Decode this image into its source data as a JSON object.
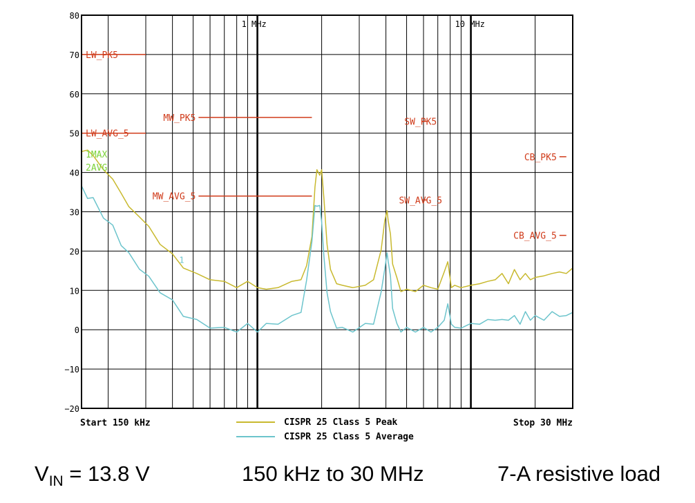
{
  "chart_data": {
    "type": "line",
    "title": "",
    "x_scale": "log",
    "xlim_mhz": [
      0.15,
      30
    ],
    "ylim": [
      -20,
      80
    ],
    "y_ticks": [
      80,
      70,
      60,
      50,
      40,
      30,
      20,
      10,
      0,
      -10,
      -20
    ],
    "y_tick_labels": [
      "80",
      "70",
      "60",
      "50",
      "40",
      "30",
      "20",
      "10",
      "0",
      "−10",
      "−20"
    ],
    "x_decade_labels": [
      {
        "mhz": 1,
        "label": "1 MHz"
      },
      {
        "mhz": 10,
        "label": "10 MHz"
      }
    ],
    "grid": true,
    "start_label": "Start 150 kHz",
    "stop_label": "Stop 30 MHz",
    "trace_labels": [
      "1MAX",
      "2AVG"
    ],
    "marker_label": "1",
    "legend": [
      {
        "name": "CISPR 25 Class 5 Peak",
        "color": "#c8b92e"
      },
      {
        "name": "CISPR 25 Class 5 Average",
        "color": "#6cc4cc"
      }
    ],
    "limits": [
      {
        "name": "LW_PK5",
        "level": 70,
        "f_start": 0.15,
        "f_stop": 0.3
      },
      {
        "name": "LW_AVG_5",
        "level": 50,
        "f_start": 0.15,
        "f_stop": 0.3
      },
      {
        "name": "MW_PK5",
        "level": 54,
        "f_start": 0.53,
        "f_stop": 1.8
      },
      {
        "name": "MW_AVG_5",
        "level": 34,
        "f_start": 0.53,
        "f_stop": 1.8
      },
      {
        "name": "SW_PK5",
        "level": 53,
        "f_start": 5.9,
        "f_stop": 6.2
      },
      {
        "name": "SW_AVG_5",
        "level": 33,
        "f_start": 5.9,
        "f_stop": 6.2
      },
      {
        "name": "CB_PK5",
        "level": 44,
        "f_start": 26,
        "f_stop": 28
      },
      {
        "name": "CB_AVG_5",
        "level": 24,
        "f_start": 26,
        "f_stop": 28
      }
    ],
    "series": [
      {
        "name": "CISPR 25 Class 5 Peak",
        "color": "#c8b92e",
        "x": [
          0.15,
          0.16,
          0.17,
          0.19,
          0.21,
          0.23,
          0.25,
          0.28,
          0.31,
          0.35,
          0.4,
          0.45,
          0.52,
          0.6,
          0.7,
          0.8,
          0.9,
          1.0,
          1.1,
          1.25,
          1.45,
          1.6,
          1.7,
          1.8,
          1.86,
          1.9,
          1.96,
          2.0,
          2.05,
          2.12,
          2.2,
          2.35,
          2.5,
          2.8,
          3.2,
          3.5,
          3.8,
          3.95,
          4.05,
          4.1,
          4.2,
          4.3,
          4.5,
          4.7,
          5.0,
          5.5,
          6.0,
          6.5,
          7.0,
          7.5,
          7.8,
          8.1,
          8.4,
          9.0,
          10.0,
          11.0,
          12.0,
          13.0,
          14.0,
          15.0,
          16.0,
          17.0,
          18.0,
          19.0,
          20.0,
          22.0,
          24.0,
          26.0,
          28.0,
          30.0
        ],
        "values": [
          45,
          46,
          44,
          41,
          38,
          35,
          31,
          29,
          26,
          22,
          19,
          16,
          14,
          13,
          12,
          11,
          12,
          11,
          10,
          11,
          12,
          13,
          16,
          24,
          36,
          41,
          39,
          41,
          33,
          22,
          15,
          12,
          11,
          11,
          11,
          13,
          20,
          28,
          30,
          28,
          24,
          17,
          13,
          10,
          10,
          10,
          11,
          11,
          10,
          15,
          17,
          11,
          11,
          11,
          11,
          12,
          12,
          13,
          14,
          12,
          15,
          13,
          14,
          13,
          13,
          14,
          14,
          15,
          14,
          16
        ]
      },
      {
        "name": "CISPR 25 Class 5 Average",
        "color": "#6cc4cc",
        "x": [
          0.15,
          0.16,
          0.17,
          0.19,
          0.21,
          0.23,
          0.25,
          0.28,
          0.31,
          0.35,
          0.4,
          0.45,
          0.52,
          0.6,
          0.7,
          0.8,
          0.9,
          1.0,
          1.1,
          1.25,
          1.45,
          1.6,
          1.7,
          1.8,
          1.86,
          1.9,
          1.96,
          2.0,
          2.05,
          2.12,
          2.2,
          2.35,
          2.5,
          2.8,
          3.2,
          3.5,
          3.8,
          3.95,
          4.05,
          4.1,
          4.2,
          4.3,
          4.5,
          4.7,
          5.0,
          5.5,
          6.0,
          6.5,
          7.0,
          7.5,
          7.8,
          8.1,
          8.4,
          9.0,
          10.0,
          11.0,
          12.0,
          13.0,
          14.0,
          15.0,
          16.0,
          17.0,
          18.0,
          19.0,
          20.0,
          22.0,
          24.0,
          26.0,
          28.0,
          30.0
        ],
        "values": [
          36,
          34,
          33,
          29,
          26,
          22,
          19,
          16,
          13,
          10,
          7,
          4,
          2,
          1,
          0,
          0,
          1,
          0,
          1,
          2,
          3,
          5,
          12,
          23,
          31,
          32,
          31,
          28,
          18,
          10,
          4,
          1,
          0,
          0,
          1,
          2,
          9,
          16,
          19,
          18,
          13,
          6,
          1,
          0,
          0,
          0,
          0,
          0,
          0,
          3,
          6,
          2,
          0,
          1,
          1,
          2,
          2,
          3,
          2,
          3,
          3,
          2,
          4,
          3,
          3,
          3,
          4,
          4,
          3,
          5
        ]
      }
    ]
  },
  "caption": {
    "vin_label": "V",
    "vin_subscript": "IN",
    "vin_value": " = 13.8 V",
    "range": "150 kHz to 30 MHz",
    "load": "7-A resistive load"
  }
}
